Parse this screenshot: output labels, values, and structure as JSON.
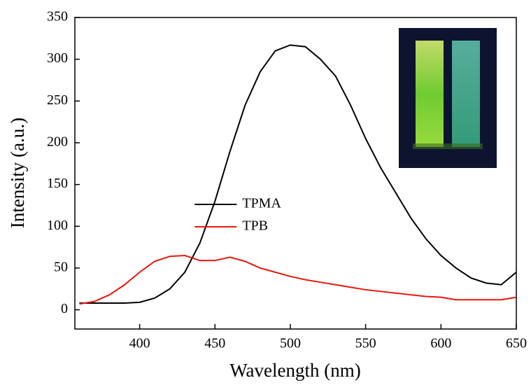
{
  "chart_data": {
    "type": "line",
    "x_label": "Wavelength (nm)",
    "y_label": "Intensity (a.u.)",
    "x": [
      360,
      370,
      380,
      390,
      400,
      410,
      420,
      430,
      440,
      450,
      460,
      470,
      480,
      490,
      500,
      510,
      520,
      530,
      540,
      550,
      560,
      570,
      580,
      590,
      600,
      610,
      620,
      630,
      640,
      650
    ],
    "series": [
      {
        "name": "TPMA",
        "color": "#000000",
        "values": [
          8,
          8,
          8,
          8,
          9,
          14,
          25,
          45,
          80,
          130,
          190,
          245,
          285,
          310,
          317,
          315,
          300,
          280,
          245,
          205,
          170,
          140,
          110,
          85,
          65,
          50,
          38,
          32,
          30,
          45
        ]
      },
      {
        "name": "TPB",
        "color": "#e8180c",
        "values": [
          7,
          10,
          18,
          30,
          45,
          58,
          64,
          65,
          59,
          59,
          63,
          58,
          50,
          45,
          40,
          36,
          33,
          30,
          27,
          24,
          22,
          20,
          18,
          16,
          15,
          12,
          12,
          12,
          12,
          15
        ]
      }
    ],
    "xlim": [
      357,
      650
    ],
    "ylim": [
      -23,
      350
    ],
    "xticks": [
      400,
      450,
      500,
      550,
      600,
      650
    ],
    "yticks": [
      0,
      50,
      100,
      150,
      200,
      250,
      300,
      350
    ],
    "legend_position": "center"
  }
}
